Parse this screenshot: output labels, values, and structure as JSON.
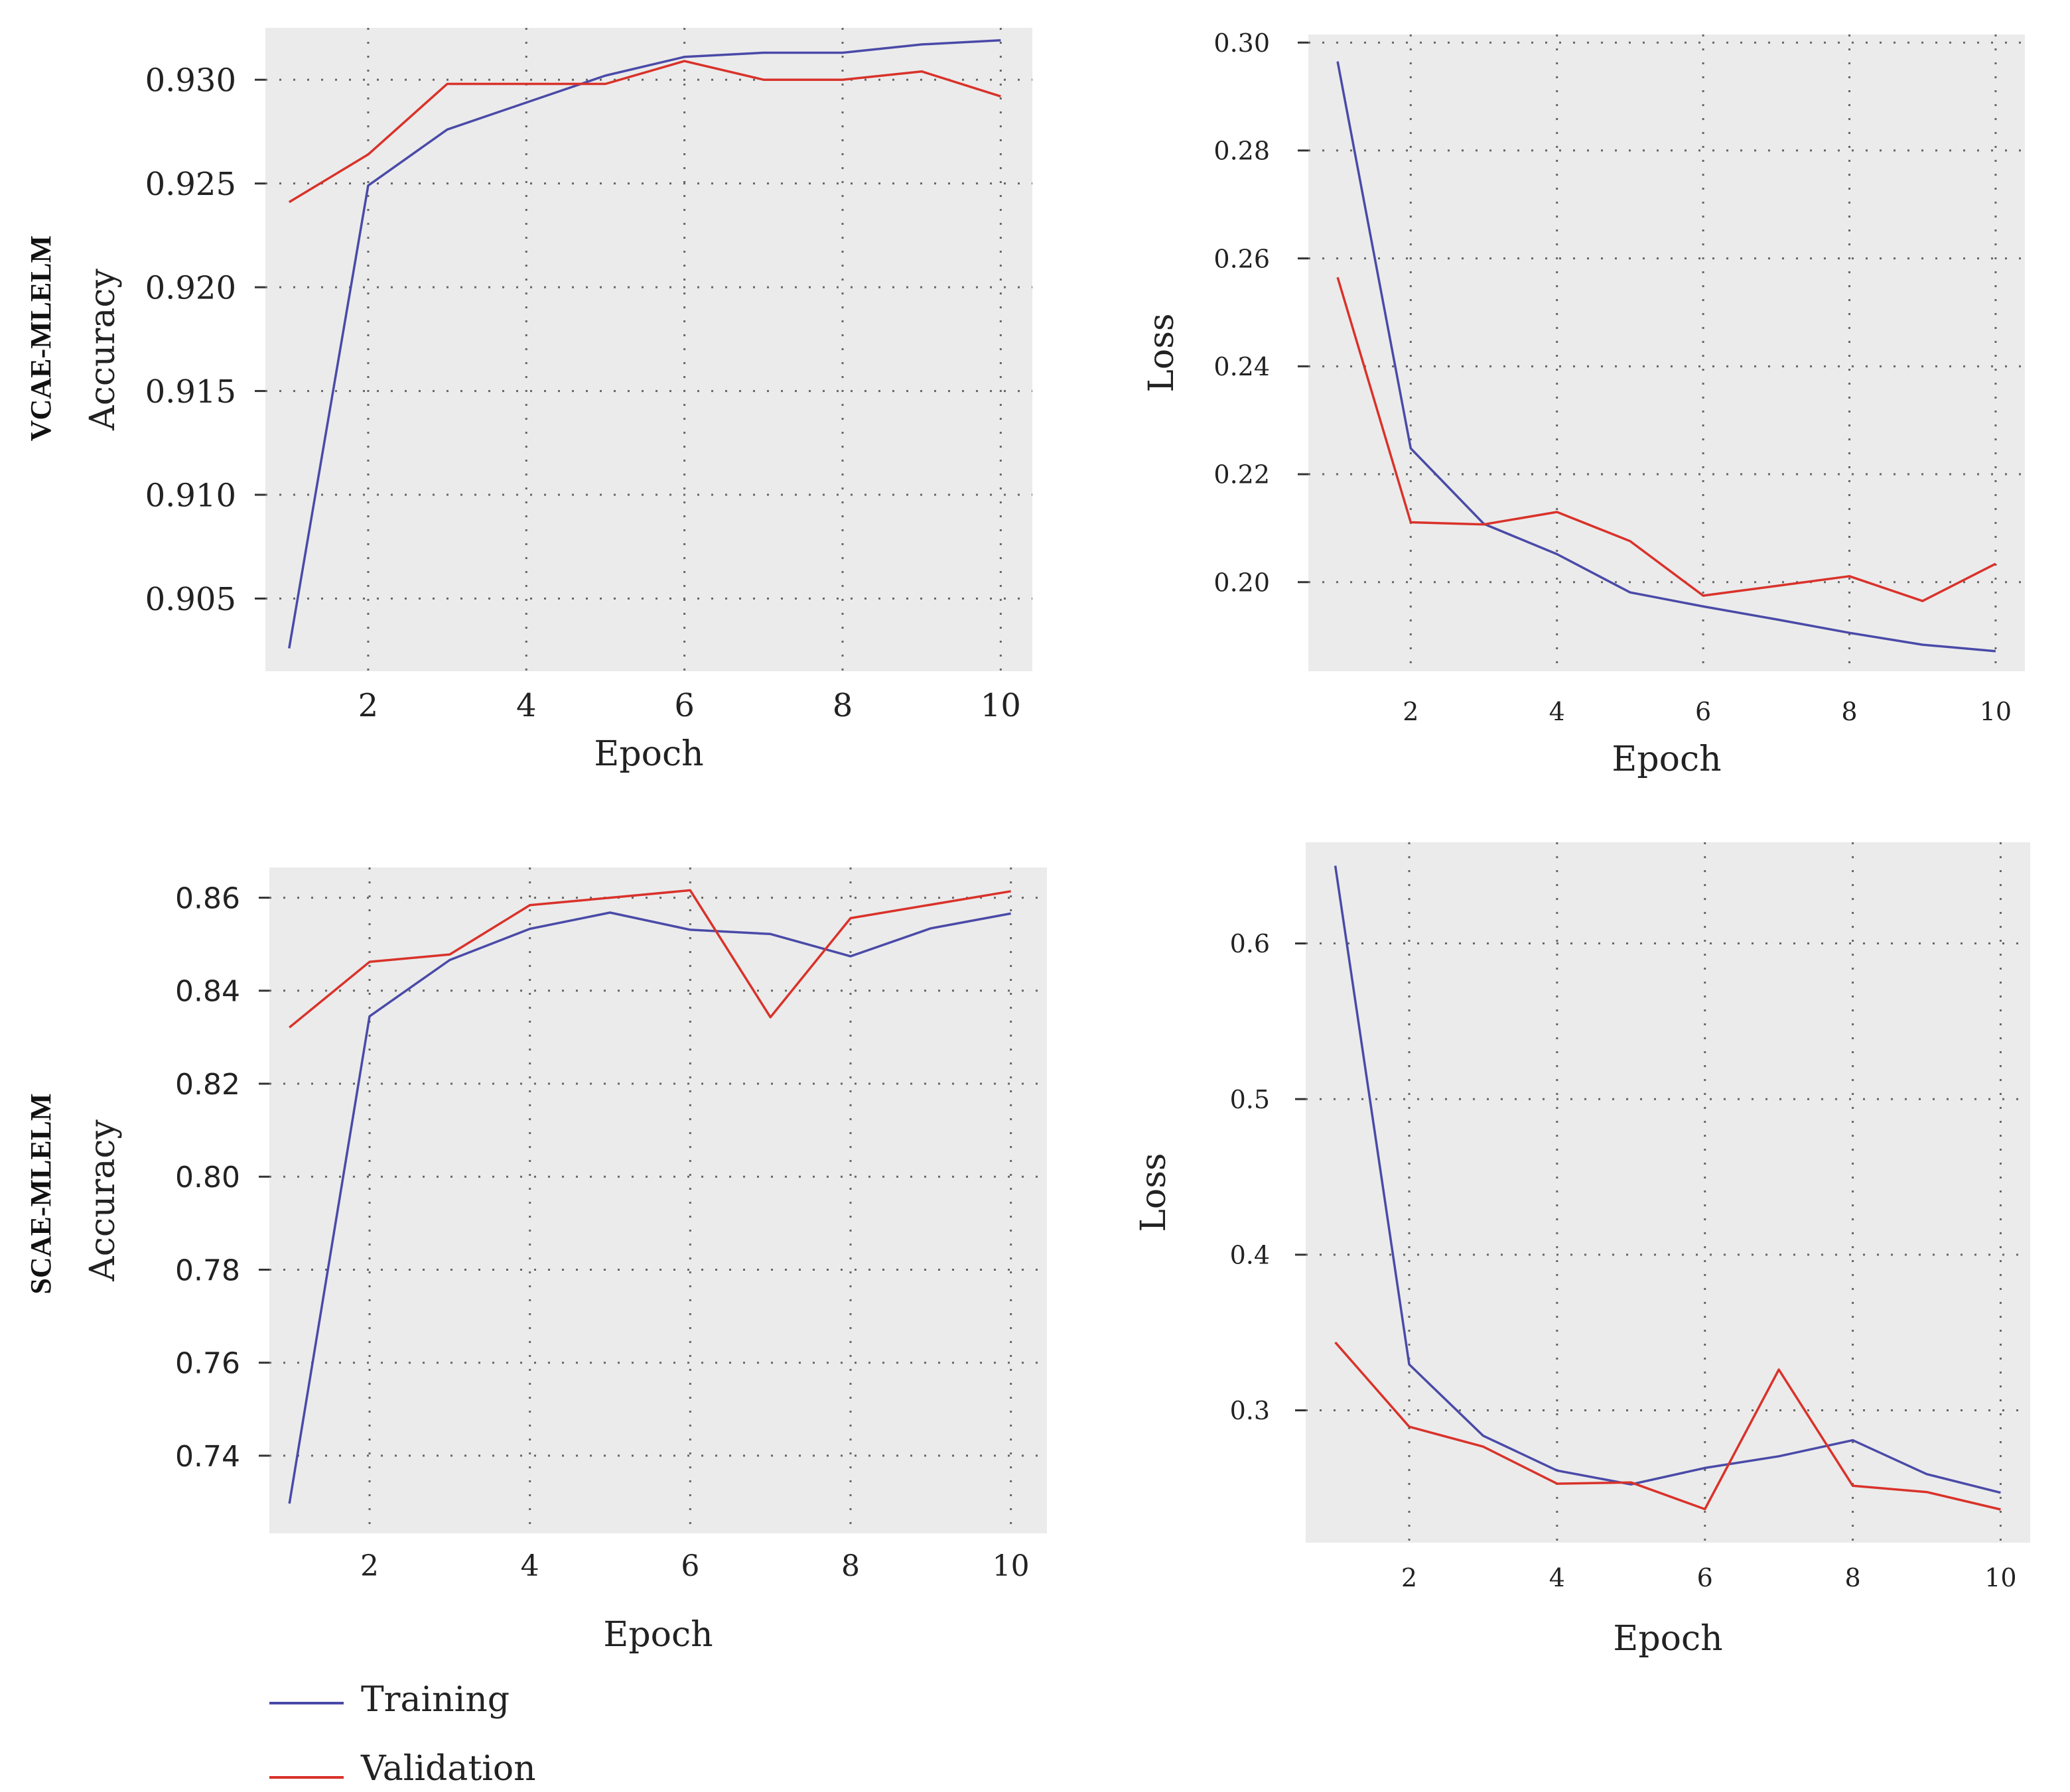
{
  "figure": {
    "row_labels": [
      "VCAE-MLELM",
      "SCAE-MLELM"
    ],
    "legend": {
      "items": [
        {
          "label": "Training",
          "color": "#4a4aa8"
        },
        {
          "label": "Validation",
          "color": "#d9322a"
        }
      ]
    }
  },
  "chart_data": [
    {
      "id": "vcae-accuracy",
      "type": "line",
      "row": "VCAE-MLELM",
      "xlabel": "Epoch",
      "ylabel": "Accuracy",
      "xlim": [
        0.7,
        10.4
      ],
      "ylim": [
        0.9015,
        0.9325
      ],
      "xticks": [
        2,
        4,
        6,
        8,
        10
      ],
      "xtick_labels": [
        "2",
        "4",
        "6",
        "8",
        "10"
      ],
      "yticks": [
        0.905,
        0.91,
        0.915,
        0.92,
        0.925,
        0.93
      ],
      "ytick_labels": [
        "0.905",
        "0.910",
        "0.915",
        "0.920",
        "0.925",
        "0.930"
      ],
      "grid": true,
      "x": [
        1,
        2,
        3,
        4,
        5,
        6,
        7,
        8,
        9,
        10
      ],
      "series": [
        {
          "name": "Training",
          "values": [
            0.9026,
            0.9249,
            0.9276,
            0.9289,
            0.9302,
            0.9311,
            0.9313,
            0.9313,
            0.9317,
            0.9319
          ]
        },
        {
          "name": "Validation",
          "values": [
            0.9241,
            0.9264,
            0.9298,
            0.9298,
            0.9298,
            0.9309,
            0.93,
            0.93,
            0.9304,
            0.9292
          ]
        }
      ]
    },
    {
      "id": "vcae-loss",
      "type": "line",
      "row": "VCAE-MLELM",
      "xlabel": "Epoch",
      "ylabel": "Loss",
      "xlim": [
        0.6,
        10.4
      ],
      "ylim": [
        0.1835,
        0.3015
      ],
      "xticks": [
        2,
        4,
        6,
        8,
        10
      ],
      "xtick_labels": [
        "2",
        "4",
        "6",
        "8",
        "10"
      ],
      "yticks": [
        0.2,
        0.22,
        0.24,
        0.26,
        0.28,
        0.3
      ],
      "ytick_labels": [
        "0.20",
        "0.22",
        "0.24",
        "0.26",
        "0.28",
        "0.30"
      ],
      "grid": true,
      "x": [
        1,
        2,
        3,
        4,
        5,
        6,
        7,
        8,
        9,
        10
      ],
      "series": [
        {
          "name": "Training",
          "values": [
            0.2965,
            0.2248,
            0.2108,
            0.2052,
            0.1981,
            0.1955,
            0.1931,
            0.1906,
            0.1884,
            0.1872
          ]
        },
        {
          "name": "Validation",
          "values": [
            0.2565,
            0.2111,
            0.2107,
            0.213,
            0.2076,
            0.1975,
            0.1993,
            0.2011,
            0.1965,
            0.2034
          ]
        }
      ]
    },
    {
      "id": "scae-accuracy",
      "type": "line",
      "row": "SCAE-MLELM",
      "xlabel": "Epoch",
      "ylabel": "Accuracy",
      "xlim": [
        0.75,
        10.45
      ],
      "ylim": [
        0.7233,
        0.8665
      ],
      "xticks": [
        2,
        4,
        6,
        8,
        10
      ],
      "xtick_labels": [
        "2",
        "4",
        "6",
        "8",
        "10"
      ],
      "yticks": [
        0.74,
        0.76,
        0.78,
        0.8,
        0.82,
        0.84,
        0.86
      ],
      "ytick_labels": [
        "0.74",
        "0.76",
        "0.78",
        "0.80",
        "0.82",
        "0.84",
        "0.86"
      ],
      "grid": true,
      "x": [
        1,
        2,
        3,
        4,
        5,
        6,
        7,
        8,
        9,
        10
      ],
      "series": [
        {
          "name": "Training",
          "values": [
            0.7297,
            0.8345,
            0.8466,
            0.8533,
            0.8568,
            0.8531,
            0.8522,
            0.8474,
            0.8534,
            0.8566
          ]
        },
        {
          "name": "Validation",
          "values": [
            0.8321,
            0.8462,
            0.8478,
            0.8584,
            0.86,
            0.8616,
            0.8343,
            0.8556,
            0.8585,
            0.8614
          ]
        }
      ]
    },
    {
      "id": "scae-loss",
      "type": "line",
      "row": "SCAE-MLELM",
      "xlabel": "Epoch",
      "ylabel": "Loss",
      "xlim": [
        0.6,
        10.4
      ],
      "ylim": [
        0.215,
        0.665
      ],
      "xticks": [
        2,
        4,
        6,
        8,
        10
      ],
      "xtick_labels": [
        "2",
        "4",
        "6",
        "8",
        "10"
      ],
      "yticks": [
        0.3,
        0.4,
        0.5,
        0.6
      ],
      "ytick_labels": [
        "0.3",
        "0.4",
        "0.5",
        "0.6"
      ],
      "grid": true,
      "x": [
        1,
        2,
        3,
        4,
        5,
        6,
        7,
        8,
        9,
        10
      ],
      "series": [
        {
          "name": "Training",
          "values": [
            0.6499,
            0.3295,
            0.2837,
            0.2613,
            0.2524,
            0.263,
            0.2705,
            0.2808,
            0.259,
            0.2471
          ]
        },
        {
          "name": "Validation",
          "values": [
            0.3437,
            0.2895,
            0.2767,
            0.2529,
            0.2537,
            0.2365,
            0.3262,
            0.2515,
            0.2475,
            0.2363
          ]
        }
      ]
    }
  ]
}
